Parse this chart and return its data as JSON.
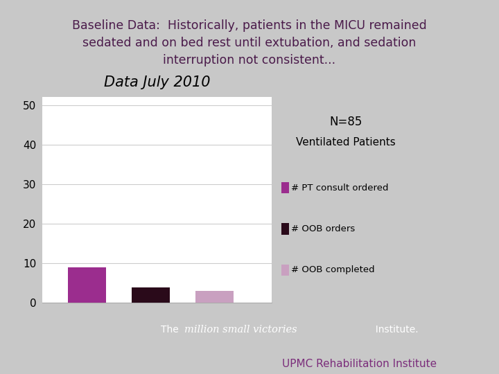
{
  "title_text": "Baseline Data:  Historically, patients in the MICU remained\nsedated and on bed rest until extubation, and sedation\ninterruption not consistent...",
  "chart_title": "Data July 2010",
  "n_label_line1": "N=85",
  "n_label_line2": "Ventilated Patients",
  "values": [
    9,
    4,
    3
  ],
  "bar_colors": [
    "#9B2D8E",
    "#2A0A1A",
    "#C9A0C0"
  ],
  "legend_labels": [
    "# PT consult ordered",
    "# OOB orders",
    "# OOB completed"
  ],
  "legend_colors": [
    "#9B2D8E",
    "#2A0A1A",
    "#C9A0C0"
  ],
  "ylim": [
    0,
    52
  ],
  "yticks": [
    0,
    10,
    20,
    30,
    40,
    50
  ],
  "bg_color": "#C8C8C8",
  "chart_bg": "#FFFFFF",
  "title_color": "#4A1A4A",
  "footer_bg": "#8B2D72",
  "footer_text2": "UPMC Rehabilitation Institute",
  "footer2_color": "#7B2D7B",
  "bar_width": 0.6,
  "bar_positions": [
    1,
    2,
    3
  ],
  "grid_color": "#CCCCCC",
  "tick_label_size": 11
}
